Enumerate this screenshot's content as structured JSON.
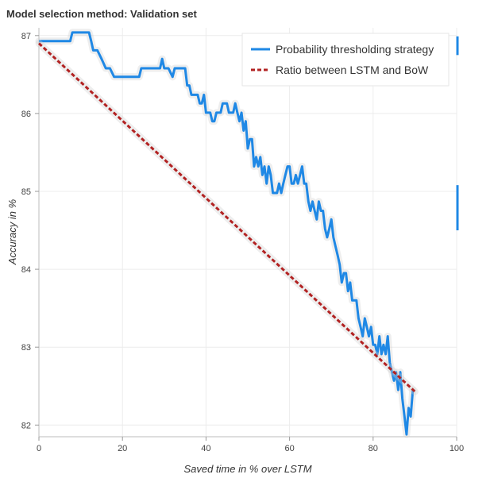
{
  "chart_data": {
    "type": "line",
    "title": "Model selection method: Validation set",
    "xlabel": "Saved time in % over LSTM",
    "ylabel": "Accuracy in %",
    "xlim": [
      0,
      100
    ],
    "ylim": [
      81.85,
      87.1
    ],
    "xticks": [
      0,
      20,
      40,
      60,
      80,
      100
    ],
    "yticks": [
      82,
      83,
      84,
      85,
      86,
      87
    ],
    "grid": true,
    "legend_position": "top-right",
    "series": [
      {
        "name": "Probability thresholding strategy",
        "style": "solid",
        "color": "#1f88e5",
        "x": [
          0,
          1,
          2,
          3,
          4,
          5,
          6,
          7,
          7.5,
          8,
          9,
          10,
          11,
          12,
          12.5,
          13,
          14,
          15,
          16,
          16.5,
          17,
          18,
          18.5,
          19,
          20,
          21,
          22,
          23,
          24,
          24.5,
          25,
          26,
          27,
          28,
          29,
          29.5,
          30,
          30.5,
          31,
          32,
          32.5,
          33,
          34,
          35,
          35.5,
          36,
          36.5,
          37,
          38,
          38.5,
          39,
          39.5,
          40,
          40.5,
          41,
          41.5,
          42,
          42.5,
          43,
          43.5,
          44,
          45,
          45.5,
          46,
          46.5,
          47,
          47.5,
          48,
          48.5,
          49,
          49.5,
          50,
          50.5,
          51,
          51.5,
          52,
          52.5,
          53,
          53.5,
          54,
          54.5,
          55,
          55.5,
          56,
          56.5,
          57,
          57.5,
          58,
          58.5,
          59,
          59.5,
          60,
          60.5,
          61,
          61.5,
          62,
          62.5,
          63,
          63.5,
          64,
          64.5,
          65,
          65.5,
          66,
          66.5,
          67,
          67.5,
          68,
          68.5,
          69,
          69.5,
          70,
          70.5,
          71,
          71.5,
          72,
          72.5,
          73,
          73.5,
          74,
          74.5,
          75,
          75.5,
          76,
          76.5,
          77,
          77.5,
          78,
          78.5,
          79,
          79.5,
          80,
          80.5,
          81,
          81.5,
          82,
          82.5,
          83,
          83.5,
          84,
          84.5,
          85,
          85.5,
          86,
          86.5,
          87,
          87.5,
          88,
          88.5,
          89,
          89.5
        ],
        "values": [
          86.93,
          86.93,
          86.93,
          86.93,
          86.93,
          86.93,
          86.93,
          86.93,
          86.93,
          87.04,
          87.04,
          87.04,
          87.04,
          87.04,
          86.93,
          86.81,
          86.81,
          86.7,
          86.58,
          86.58,
          86.58,
          86.47,
          86.47,
          86.47,
          86.47,
          86.47,
          86.47,
          86.47,
          86.47,
          86.58,
          86.58,
          86.58,
          86.58,
          86.58,
          86.58,
          86.7,
          86.58,
          86.58,
          86.58,
          86.47,
          86.58,
          86.58,
          86.58,
          86.58,
          86.36,
          86.36,
          86.24,
          86.24,
          86.24,
          86.13,
          86.13,
          86.24,
          86.01,
          86.01,
          86.01,
          85.9,
          85.9,
          86.01,
          86.01,
          86.01,
          86.13,
          86.13,
          86.01,
          86.01,
          86.01,
          86.13,
          86.01,
          85.9,
          86.01,
          85.78,
          85.9,
          85.55,
          85.67,
          85.67,
          85.32,
          85.44,
          85.32,
          85.44,
          85.21,
          85.32,
          85.1,
          85.32,
          85.21,
          84.98,
          84.98,
          84.98,
          85.1,
          84.98,
          85.1,
          85.21,
          85.32,
          85.32,
          85.1,
          85.1,
          85.21,
          85.1,
          85.21,
          85.32,
          85.1,
          85.1,
          84.87,
          84.75,
          84.87,
          84.75,
          84.64,
          84.87,
          84.75,
          84.75,
          84.52,
          84.41,
          84.52,
          84.64,
          84.41,
          84.29,
          84.18,
          84.06,
          83.83,
          83.95,
          83.95,
          83.72,
          83.83,
          83.6,
          83.6,
          83.6,
          83.37,
          83.26,
          83.14,
          83.37,
          83.26,
          83.14,
          83.26,
          83.03,
          83.03,
          82.91,
          83.14,
          82.91,
          83.03,
          82.91,
          83.14,
          82.8,
          82.68,
          82.57,
          82.68,
          82.45,
          82.68,
          82.34,
          82.11,
          81.88,
          82.22,
          82.11,
          82.45
        ]
      },
      {
        "name": "Ratio between LSTM and BoW",
        "style": "dashed",
        "color": "#b22222",
        "x": [
          0,
          90
        ],
        "values": [
          86.9,
          82.43
        ]
      }
    ],
    "right_markers": [
      {
        "y_from": 86.75,
        "y_to": 86.99,
        "color": "#1f88e5"
      },
      {
        "y_from": 84.5,
        "y_to": 85.08,
        "color": "#1f88e5"
      }
    ]
  }
}
